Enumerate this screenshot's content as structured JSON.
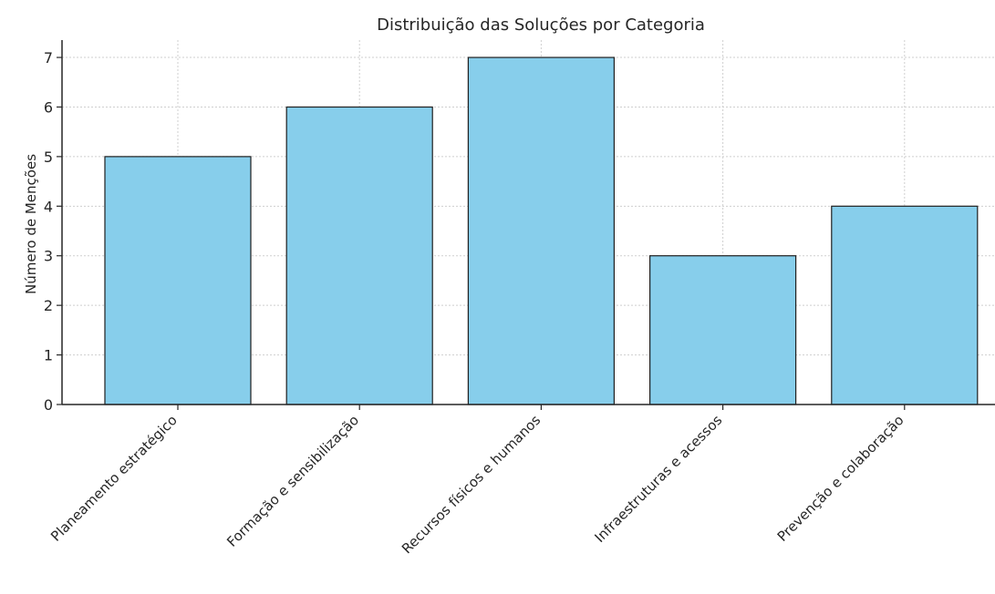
{
  "chart_data": {
    "type": "bar",
    "title": "Distribuição das Soluções por Categoria",
    "xlabel": "",
    "ylabel": "Número de Menções",
    "categories": [
      "Planeamento estratégico",
      "Formação e sensibilização",
      "Recursos físicos e humanos",
      "Infraestruturas e acessos",
      "Prevenção e colaboração"
    ],
    "values": [
      5,
      6,
      7,
      3,
      4
    ],
    "ylim": [
      0,
      7.35
    ],
    "yticks": [
      0,
      1,
      2,
      3,
      4,
      5,
      6,
      7
    ],
    "grid": true,
    "bar_color": "#87ceeb",
    "edge_color": "#1f1f1f"
  }
}
